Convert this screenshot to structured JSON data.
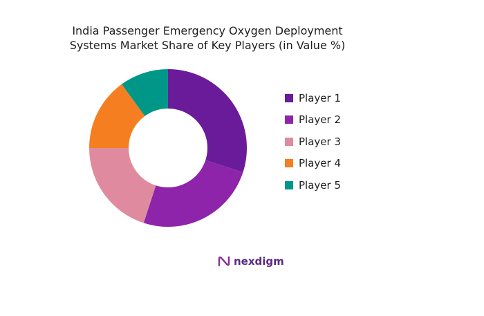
{
  "chart_data": {
    "type": "pie",
    "variant": "donut",
    "title_lines": [
      "India Passenger Emergency Oxygen Deployment",
      "Systems Market Share of Key Players (in Value %)"
    ],
    "categories": [
      "Player 1",
      "Player 2",
      "Player 3",
      "Player 4",
      "Player 5"
    ],
    "values": [
      30,
      25,
      20,
      15,
      10
    ],
    "colors": [
      "#6a1b9a",
      "#8e24aa",
      "#e08aa0",
      "#f57f20",
      "#009688"
    ],
    "legend_position": "right",
    "start_angle_deg": 0,
    "direction": "clockwise"
  },
  "brand": {
    "name": "nexdigm",
    "icon": "nexdigm-logo-icon",
    "color": "#5a2a82"
  }
}
